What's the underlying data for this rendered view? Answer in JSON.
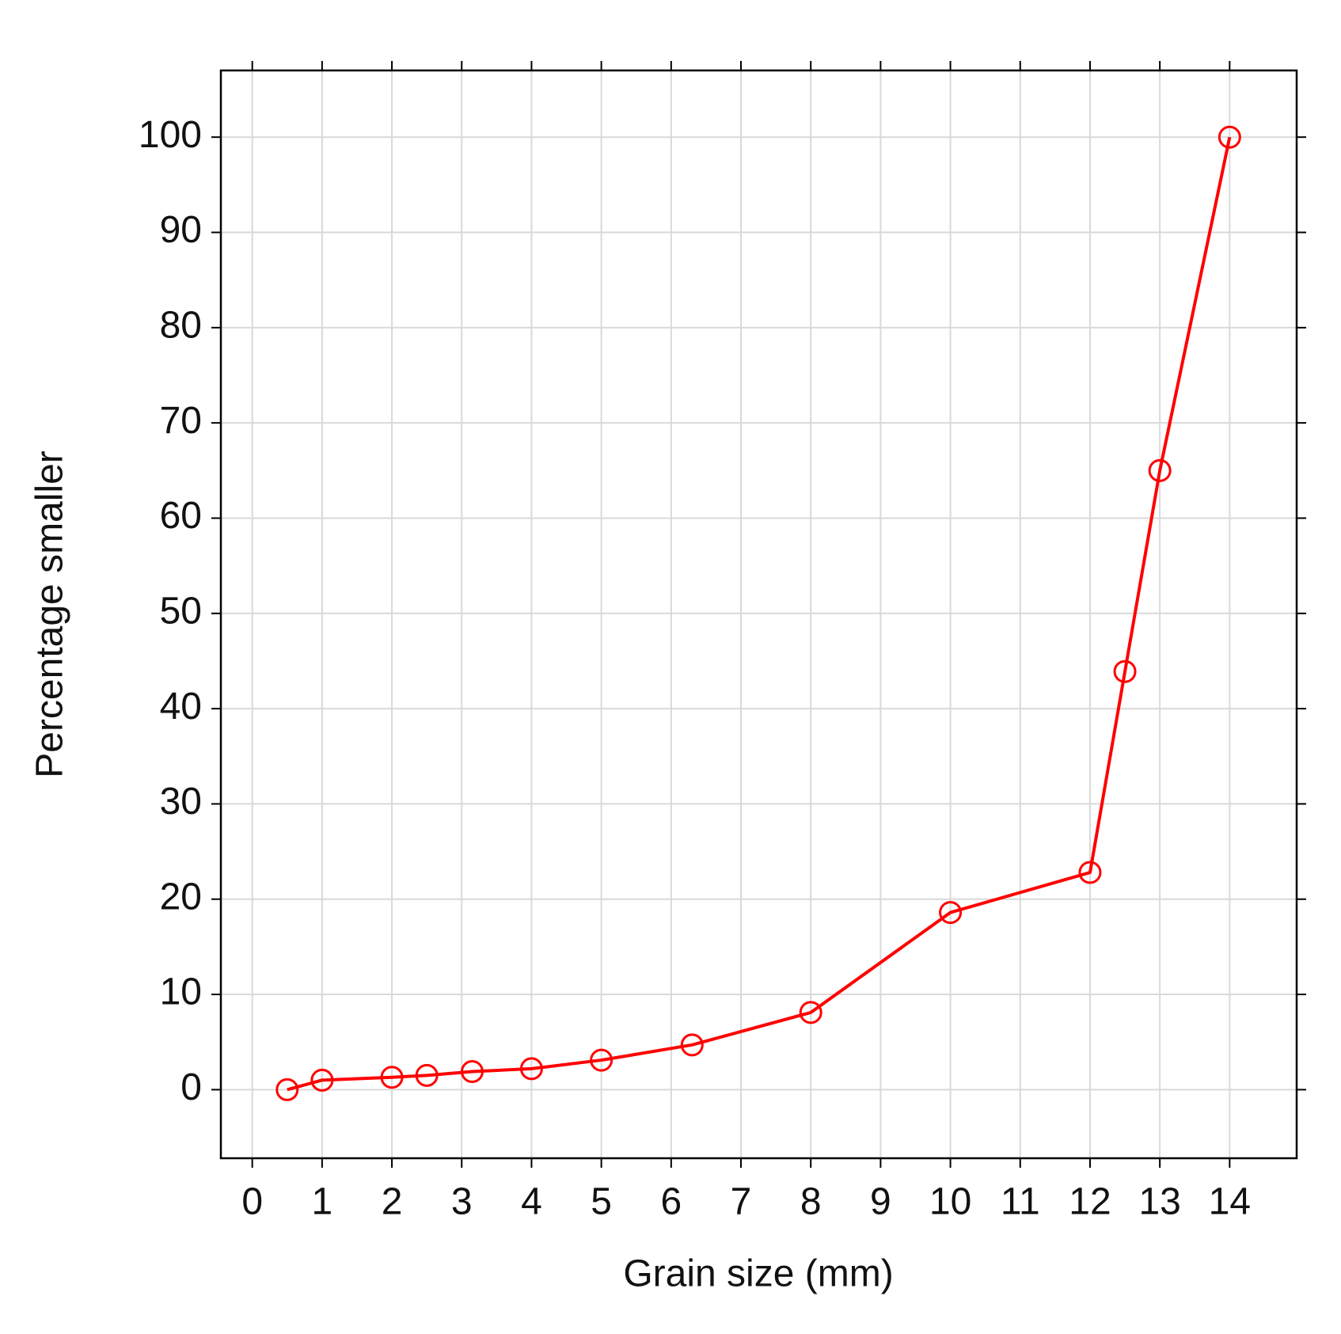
{
  "chart_data": {
    "type": "line",
    "xlabel": "Grain size (mm)",
    "ylabel": "Percentage smaller",
    "x": [
      0.5,
      1,
      2,
      2.5,
      3.15,
      4,
      5,
      6.3,
      8,
      10,
      12,
      12.5,
      13,
      14
    ],
    "series": [
      {
        "color": "#ff0000",
        "values": [
          0,
          1,
          1.3,
          1.5,
          1.9,
          2.2,
          3.1,
          4.7,
          8.1,
          18.6,
          22.8,
          43.9,
          65,
          100
        ]
      }
    ],
    "xlim": [
      -0.45,
      14.96
    ],
    "ylim": [
      -7.2,
      107
    ],
    "xticks": [
      0,
      1,
      2,
      3,
      4,
      5,
      6,
      7,
      8,
      9,
      10,
      11,
      12,
      13,
      14
    ],
    "yticks": [
      0,
      10,
      20,
      30,
      40,
      50,
      60,
      70,
      80,
      90,
      100
    ],
    "grid": true
  }
}
